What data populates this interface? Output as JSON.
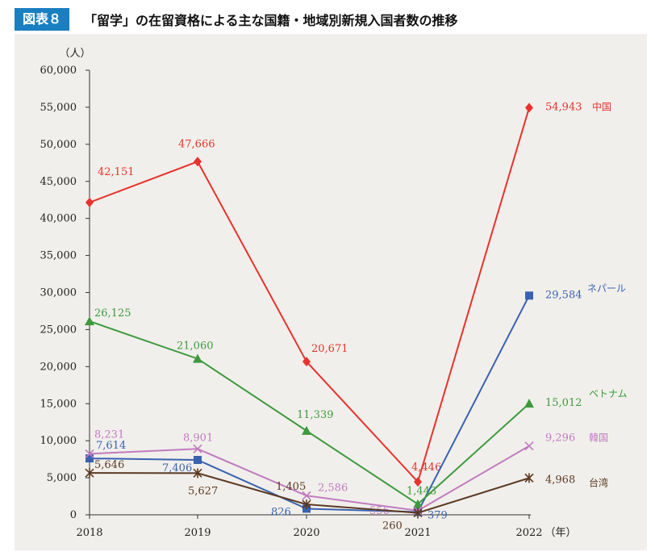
{
  "header": {
    "figure_label": "図表８",
    "title": "「留学」の在留資格による主な国籍・地域別新規入国者数の推移"
  },
  "chart_data": {
    "type": "line",
    "title": "「留学」の在留資格による主な国籍・地域別新規入国者数の推移",
    "ylabel": "（人）",
    "xlabel": "（年）",
    "categories": [
      "2018",
      "2019",
      "2020",
      "2021",
      "2022"
    ],
    "ylim": [
      0,
      60000
    ],
    "yticks": [
      "0",
      "5,000",
      "10,000",
      "15,000",
      "20,000",
      "25,000",
      "30,000",
      "35,000",
      "40,000",
      "45,000",
      "50,000",
      "55,000",
      "60,000"
    ],
    "grid": false,
    "legend": "labels at line ends",
    "series": [
      {
        "name": "中国",
        "color": "#e8322d",
        "marker": "diamond",
        "values": [
          42151,
          47666,
          20671,
          4446,
          54943
        ],
        "labels": [
          "42,151",
          "47,666",
          "20,671",
          "4,446",
          "54,943"
        ]
      },
      {
        "name": "ネパール",
        "color": "#3a62b0",
        "marker": "square",
        "values": [
          7614,
          7406,
          826,
          379,
          29584
        ],
        "labels": [
          "7,614",
          "7,406",
          "826",
          "379",
          "29,584"
        ]
      },
      {
        "name": "ベトナム",
        "color": "#3c9a3c",
        "marker": "triangle",
        "values": [
          26125,
          21060,
          11339,
          1443,
          15012
        ],
        "labels": [
          "26,125",
          "21,060",
          "11,339",
          "1,443",
          "15,012"
        ]
      },
      {
        "name": "韓国",
        "color": "#c07bbf",
        "marker": "x",
        "values": [
          8231,
          8901,
          2586,
          556,
          9296
        ],
        "labels": [
          "8,231",
          "8,901",
          "2,586",
          "556",
          "9,296"
        ]
      },
      {
        "name": "台湾",
        "color": "#5b3a24",
        "marker": "star",
        "values": [
          5646,
          5627,
          1405,
          260,
          4968
        ],
        "labels": [
          "5,646",
          "5,627",
          "1,405",
          "260",
          "4,968"
        ]
      }
    ]
  }
}
